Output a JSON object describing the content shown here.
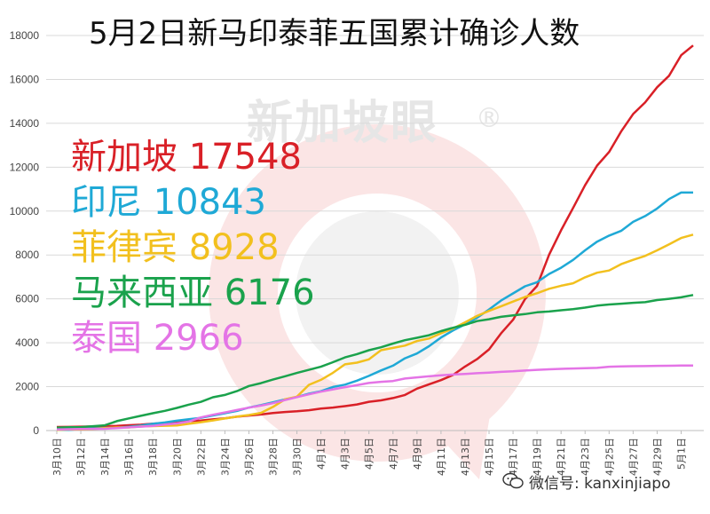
{
  "chart_data": {
    "type": "line",
    "title": "5月2日新马印泰菲五国累计确诊人数",
    "ylim": [
      0,
      18000
    ],
    "yticks": [
      0,
      2000,
      4000,
      6000,
      8000,
      10000,
      12000,
      14000,
      16000,
      18000
    ],
    "x": [
      "3月10日",
      "3月11日",
      "3月12日",
      "3月13日",
      "3月14日",
      "3月15日",
      "3月16日",
      "3月17日",
      "3月18日",
      "3月19日",
      "3月20日",
      "3月21日",
      "3月22日",
      "3月23日",
      "3月24日",
      "3月25日",
      "3月26日",
      "3月27日",
      "3月28日",
      "3月29日",
      "3月30日",
      "3月31日",
      "4月1日",
      "4月2日",
      "4月3日",
      "4月4日",
      "4月5日",
      "4月6日",
      "4月7日",
      "4月8日",
      "4月9日",
      "4月10日",
      "4月11日",
      "4月12日",
      "4月13日",
      "4月14日",
      "4月15日",
      "4月16日",
      "4月17日",
      "4月18日",
      "4月19日",
      "4月20日",
      "4月21日",
      "4月22日",
      "4月23日",
      "4月24日",
      "4月25日",
      "4月26日",
      "4月27日",
      "4月28日",
      "4月29日",
      "4月30日",
      "5月1日",
      "5月2日"
    ],
    "xtick_labels": [
      "3月10日",
      "3月12日",
      "3月14日",
      "3月16日",
      "3月18日",
      "3月20日",
      "3月22日",
      "3月24日",
      "3月26日",
      "3月28日",
      "3月30日",
      "4月1日",
      "4月3日",
      "4月5日",
      "4月7日",
      "4月9日",
      "4月11日",
      "4月13日",
      "4月15日",
      "4月17日",
      "4月19日",
      "4月21日",
      "4月23日",
      "4月25日",
      "4月27日",
      "4月29日",
      "5月1日"
    ],
    "series": [
      {
        "name": "新加坡",
        "color": "#d92027",
        "values": [
          160,
          166,
          178,
          187,
          200,
          212,
          243,
          266,
          313,
          345,
          385,
          432,
          455,
          509,
          558,
          631,
          683,
          732,
          802,
          844,
          879,
          926,
          1000,
          1049,
          1114,
          1189,
          1309,
          1375,
          1481,
          1623,
          1910,
          2108,
          2299,
          2532,
          2918,
          3252,
          3699,
          4427,
          5050,
          5992,
          6588,
          8014,
          9125,
          10141,
          11178,
          12075,
          12693,
          13624,
          14423,
          14951,
          15641,
          16169,
          17101,
          17548
        ]
      },
      {
        "name": "印尼",
        "color": "#1fa9d6",
        "values": [
          27,
          34,
          69,
          96,
          117,
          134,
          172,
          227,
          309,
          369,
          450,
          514,
          579,
          686,
          790,
          893,
          1046,
          1155,
          1285,
          1414,
          1528,
          1677,
          1790,
          1986,
          2092,
          2273,
          2491,
          2738,
          2956,
          3293,
          3512,
          3842,
          4241,
          4557,
          4839,
          5136,
          5516,
          5923,
          6248,
          6575,
          6760,
          7135,
          7418,
          7775,
          8211,
          8607,
          8882,
          9096,
          9511,
          9771,
          10118,
          10551,
          10843,
          10843
        ]
      },
      {
        "name": "菲律宾",
        "color": "#f2c01e",
        "values": [
          33,
          49,
          52,
          64,
          111,
          140,
          142,
          187,
          202,
          217,
          230,
          307,
          380,
          462,
          552,
          636,
          707,
          803,
          1075,
          1418,
          1546,
          2084,
          2311,
          2633,
          3018,
          3094,
          3246,
          3660,
          3764,
          3870,
          4076,
          4195,
          4428,
          4648,
          4932,
          5223,
          5453,
          5660,
          5878,
          6087,
          6259,
          6459,
          6599,
          6710,
          6981,
          7192,
          7294,
          7579,
          7777,
          7958,
          8212,
          8488,
          8772,
          8928
        ]
      },
      {
        "name": "马来西亚",
        "color": "#1aa24c",
        "values": [
          129,
          149,
          158,
          197,
          238,
          428,
          553,
          673,
          790,
          900,
          1030,
          1183,
          1306,
          1518,
          1624,
          1796,
          2031,
          2161,
          2320,
          2470,
          2626,
          2766,
          2908,
          3116,
          3333,
          3483,
          3662,
          3793,
          3963,
          4119,
          4228,
          4346,
          4530,
          4683,
          4817,
          4987,
          5072,
          5182,
          5251,
          5305,
          5389,
          5425,
          5482,
          5532,
          5603,
          5691,
          5742,
          5780,
          5820,
          5851,
          5945,
          6002,
          6071,
          6176
        ]
      },
      {
        "name": "泰国",
        "color": "#e474e6",
        "values": [
          53,
          59,
          70,
          75,
          82,
          114,
          147,
          177,
          212,
          272,
          322,
          411,
          599,
          721,
          827,
          934,
          1045,
          1136,
          1245,
          1388,
          1524,
          1651,
          1771,
          1875,
          1978,
          2067,
          2169,
          2220,
          2258,
          2369,
          2423,
          2473,
          2518,
          2551,
          2579,
          2613,
          2643,
          2672,
          2700,
          2733,
          2765,
          2792,
          2811,
          2826,
          2839,
          2854,
          2907,
          2922,
          2931,
          2938,
          2947,
          2954,
          2960,
          2966
        ]
      }
    ]
  },
  "legend": [
    {
      "name": "新加坡",
      "value": "17548",
      "color": "#d92027"
    },
    {
      "name": "印尼",
      "value": "10843",
      "color": "#1fa9d6"
    },
    {
      "name": "菲律宾",
      "value": "8928",
      "color": "#f2c01e"
    },
    {
      "name": "马来西亚",
      "value": "6176",
      "color": "#1aa24c"
    },
    {
      "name": "泰国",
      "value": "2966",
      "color": "#e474e6"
    }
  ],
  "watermark": {
    "text": "新加坡眼",
    "mark": "®",
    "logo_icon": "xinjiapoyan-logo-icon"
  },
  "footer": {
    "icon": "wechat-icon",
    "text": "微信号: kanxinjiapo"
  }
}
